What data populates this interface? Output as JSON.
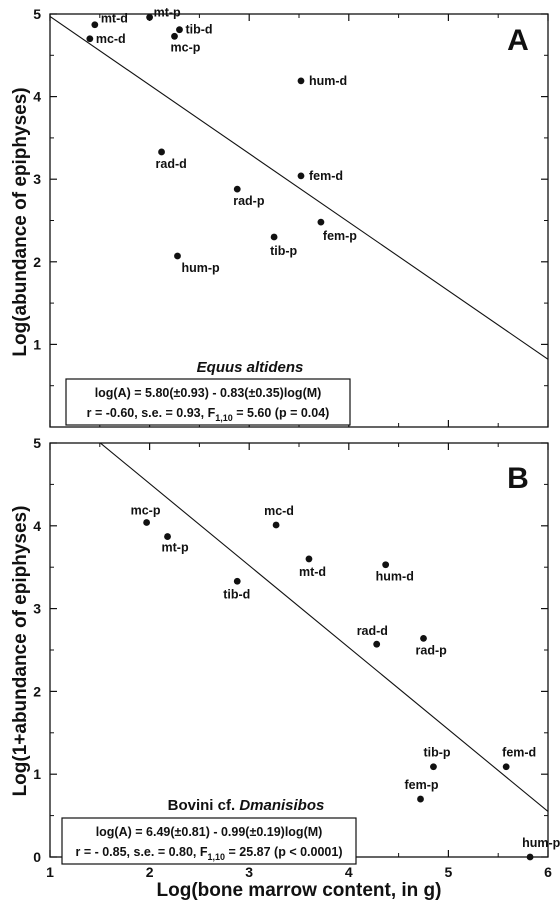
{
  "chart_data": [
    {
      "type": "scatter",
      "panel": "A",
      "ylabel": "Log(abundance of epiphyses)",
      "xlim": [
        1,
        6
      ],
      "ylim": [
        0,
        5
      ],
      "y_ticks": [
        "1",
        "2",
        "3",
        "4",
        "5"
      ],
      "species": {
        "prefix": "",
        "italic": "Equus altidens"
      },
      "equation": {
        "line1": "log(A) = 5.80(±0.93) - 0.83(±0.35)log(M)",
        "line2_main": "r = -0.60, s.e. = 0.93, F",
        "line2_sub": "1,10",
        "line2_tail": " = 5.60 (p = 0.04)"
      },
      "fit": {
        "intercept": 5.8,
        "slope": -0.83
      },
      "points": [
        {
          "label": "mt-d",
          "x": 1.45,
          "y": 4.87
        },
        {
          "label": "mc-d",
          "x": 1.4,
          "y": 4.7
        },
        {
          "label": "mt-p",
          "x": 2.0,
          "y": 4.96
        },
        {
          "label": "tib-d",
          "x": 2.3,
          "y": 4.81
        },
        {
          "label": "mc-p",
          "x": 2.25,
          "y": 4.73
        },
        {
          "label": "hum-d",
          "x": 3.52,
          "y": 4.19
        },
        {
          "label": "rad-d",
          "x": 2.12,
          "y": 3.33
        },
        {
          "label": "fem-d",
          "x": 3.52,
          "y": 3.04
        },
        {
          "label": "rad-p",
          "x": 2.88,
          "y": 2.88
        },
        {
          "label": "fem-p",
          "x": 3.72,
          "y": 2.48
        },
        {
          "label": "tib-p",
          "x": 3.25,
          "y": 2.3
        },
        {
          "label": "hum-p",
          "x": 2.28,
          "y": 2.07
        }
      ]
    },
    {
      "type": "scatter",
      "panel": "B",
      "xlabel": "Log(bone marrow content, in g)",
      "ylabel": "Log(1+abundance of epiphyses)",
      "xlim": [
        1,
        6
      ],
      "ylim": [
        0,
        5
      ],
      "x_ticks": [
        "1",
        "2",
        "3",
        "4",
        "5",
        "6"
      ],
      "y_ticks": [
        "0",
        "1",
        "2",
        "3",
        "4",
        "5"
      ],
      "species": {
        "prefix": "Bovini cf. ",
        "italic": "Dmanisibos"
      },
      "equation": {
        "line1": "log(A) = 6.49(±0.81) - 0.99(±0.19)log(M)",
        "line2_main": "r = - 0.85, s.e. = 0.80, F",
        "line2_sub": "1,10",
        "line2_tail": " = 25.87 (p < 0.0001)"
      },
      "fit": {
        "intercept": 6.49,
        "slope": -0.99
      },
      "points": [
        {
          "label": "mc-p",
          "x": 1.97,
          "y": 4.04
        },
        {
          "label": "mt-p",
          "x": 2.18,
          "y": 3.87
        },
        {
          "label": "mc-d",
          "x": 3.27,
          "y": 4.01
        },
        {
          "label": "mt-d",
          "x": 3.6,
          "y": 3.6
        },
        {
          "label": "hum-d",
          "x": 4.37,
          "y": 3.53
        },
        {
          "label": "tib-d",
          "x": 2.88,
          "y": 3.33
        },
        {
          "label": "rad-d",
          "x": 4.28,
          "y": 2.57
        },
        {
          "label": "rad-p",
          "x": 4.75,
          "y": 2.64
        },
        {
          "label": "tib-p",
          "x": 4.85,
          "y": 1.09
        },
        {
          "label": "fem-d",
          "x": 5.58,
          "y": 1.09
        },
        {
          "label": "fem-p",
          "x": 4.72,
          "y": 0.7
        },
        {
          "label": "hum-p",
          "x": 5.82,
          "y": 0.0
        }
      ]
    }
  ]
}
